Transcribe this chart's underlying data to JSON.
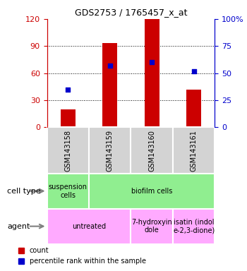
{
  "title": "GDS2753 / 1765457_x_at",
  "samples": [
    "GSM143158",
    "GSM143159",
    "GSM143160",
    "GSM143161"
  ],
  "bar_values": [
    20,
    93,
    120,
    42
  ],
  "dot_values": [
    35,
    57,
    60,
    52
  ],
  "bar_color": "#cc0000",
  "dot_color": "#0000cc",
  "ylim_left": [
    0,
    120
  ],
  "ylim_right": [
    0,
    100
  ],
  "yticks_left": [
    0,
    30,
    60,
    90,
    120
  ],
  "yticks_right": [
    0,
    25,
    50,
    75,
    100
  ],
  "ytick_labels_left": [
    "0",
    "30",
    "60",
    "90",
    "120"
  ],
  "ytick_labels_right": [
    "0",
    "25",
    "50",
    "75",
    "100%"
  ],
  "cell_type_row": {
    "label": "cell type",
    "cells": [
      {
        "text": "suspension\ncells",
        "color": "#90ee90",
        "span": 1
      },
      {
        "text": "biofilm cells",
        "color": "#90ee90",
        "span": 3
      }
    ]
  },
  "agent_row": {
    "label": "agent",
    "cells": [
      {
        "text": "untreated",
        "color": "#ffaaff",
        "span": 2
      },
      {
        "text": "7-hydroxyin\ndole",
        "color": "#ffaaff",
        "span": 1
      },
      {
        "text": "isatin (indol\ne-2,3-dione)",
        "color": "#ffaaff",
        "span": 1
      }
    ]
  },
  "legend_items": [
    {
      "color": "#cc0000",
      "label": "count"
    },
    {
      "color": "#0000cc",
      "label": "percentile rank within the sample"
    }
  ],
  "sample_box_color": "#d3d3d3",
  "left_axis_color": "#cc0000",
  "right_axis_color": "#0000cc",
  "bar_width": 0.35
}
